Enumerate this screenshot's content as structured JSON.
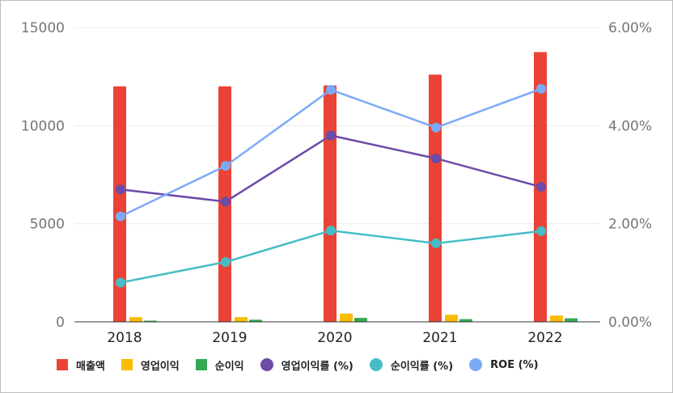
{
  "chart_data": {
    "type": "bar",
    "categories": [
      "2018",
      "2019",
      "2020",
      "2021",
      "2022"
    ],
    "ylim_left": [
      0,
      15000
    ],
    "yticks_left": [
      "0",
      "5000",
      "10000",
      "15000"
    ],
    "ylim_right": [
      0,
      6
    ],
    "yticks_right": [
      "0.00%",
      "2.00%",
      "4.00%",
      "6.00%"
    ],
    "grid": true,
    "legend_position": "bottom",
    "series": [
      {
        "name": "매출액",
        "type": "bar",
        "axis": "left",
        "color": "#ea4335",
        "values": [
          12000,
          12000,
          12050,
          12600,
          13750
        ]
      },
      {
        "name": "영업이익",
        "type": "bar",
        "axis": "left",
        "color": "#fbbc04",
        "values": [
          240,
          240,
          420,
          360,
          320
        ]
      },
      {
        "name": "순이익",
        "type": "bar",
        "axis": "left",
        "color": "#34a853",
        "values": [
          60,
          110,
          200,
          140,
          180
        ]
      },
      {
        "name": "영업이익률 (%)",
        "type": "line",
        "axis": "right",
        "color": "#6d4ba8",
        "values": [
          2.7,
          2.45,
          3.8,
          3.33,
          2.75
        ]
      },
      {
        "name": "순이익률 (%)",
        "type": "line",
        "axis": "right",
        "color": "#46bdc6",
        "values": [
          0.8,
          1.22,
          1.86,
          1.6,
          1.85
        ]
      },
      {
        "name": "ROE (%)",
        "type": "line",
        "axis": "right",
        "color": "#7baaf7",
        "values": [
          2.15,
          3.18,
          4.73,
          3.96,
          4.75
        ]
      }
    ]
  }
}
